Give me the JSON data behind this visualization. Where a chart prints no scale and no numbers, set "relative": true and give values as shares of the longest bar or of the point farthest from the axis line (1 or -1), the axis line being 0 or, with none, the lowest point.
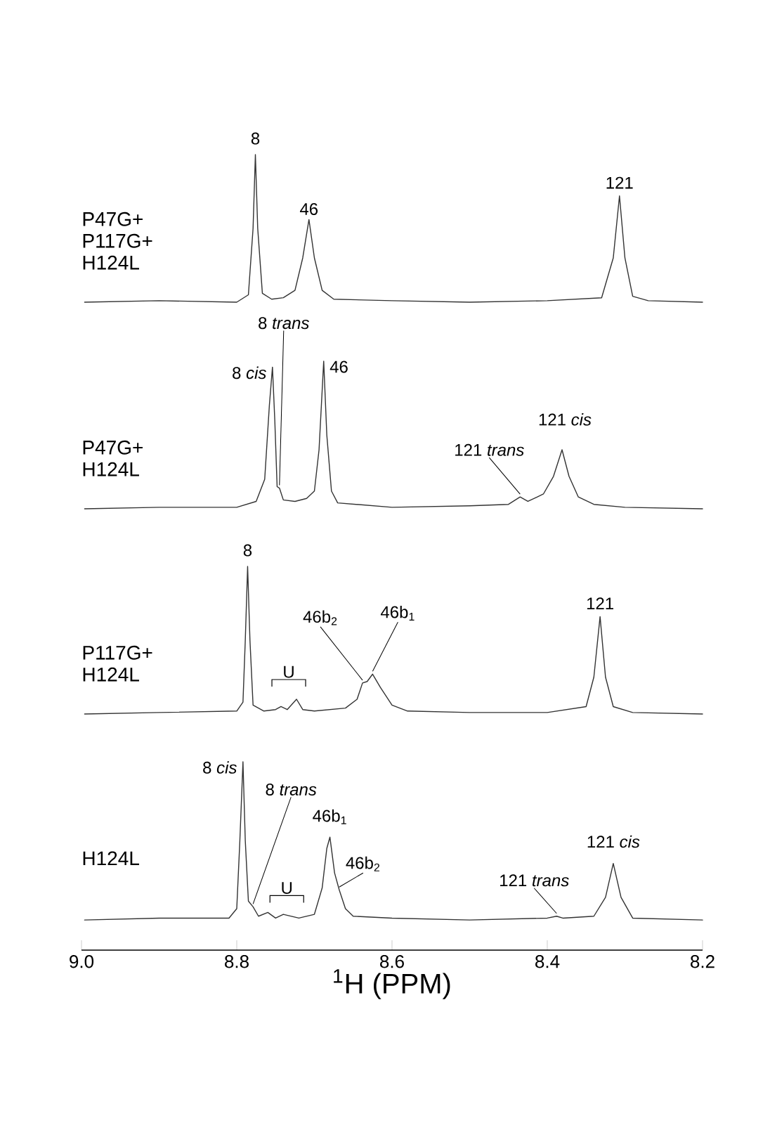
{
  "chart_data": [
    {
      "type": "line",
      "relative": true,
      "xlim": [
        9.0,
        8.2
      ],
      "tick_labels": false,
      "series": [
        {
          "name": "P47G+ P117G+ H124L",
          "color": "#333333",
          "x": [
            8.996,
            8.9,
            8.8,
            8.785,
            8.779,
            8.776,
            8.773,
            8.767,
            8.755,
            8.74,
            8.725,
            8.715,
            8.707,
            8.7,
            8.69,
            8.675,
            8.6,
            8.5,
            8.4,
            8.33,
            8.315,
            8.307,
            8.3,
            8.29,
            8.27,
            8.2
          ],
          "values": [
            0,
            0.01,
            0.0,
            0.05,
            0.5,
            1.0,
            0.5,
            0.06,
            0.02,
            0.03,
            0.08,
            0.3,
            0.56,
            0.3,
            0.08,
            0.02,
            0.01,
            0.0,
            0.01,
            0.03,
            0.3,
            0.72,
            0.3,
            0.04,
            0.01,
            0
          ]
        }
      ],
      "annotations": [
        {
          "text": "8",
          "x": 8.776,
          "y": 1.0
        },
        {
          "text": "46",
          "x": 8.707,
          "y": 0.56
        },
        {
          "text": "121",
          "x": 8.307,
          "y": 0.72
        }
      ]
    },
    {
      "type": "line",
      "relative": true,
      "xlim": [
        9.0,
        8.2
      ],
      "tick_labels": false,
      "series": [
        {
          "name": "P47G+ H124L",
          "color": "#333333",
          "x": [
            8.996,
            8.9,
            8.8,
            8.775,
            8.764,
            8.758,
            8.754,
            8.751,
            8.748,
            8.745,
            8.74,
            8.725,
            8.71,
            8.7,
            8.694,
            8.688,
            8.684,
            8.678,
            8.67,
            8.6,
            8.5,
            8.45,
            8.435,
            8.425,
            8.405,
            8.392,
            8.381,
            8.372,
            8.36,
            8.34,
            8.3,
            8.2
          ],
          "values": [
            0,
            0.01,
            0.01,
            0.05,
            0.2,
            0.7,
            0.96,
            0.6,
            0.15,
            0.14,
            0.06,
            0.05,
            0.07,
            0.12,
            0.4,
            1.0,
            0.5,
            0.12,
            0.04,
            0.01,
            0.02,
            0.03,
            0.08,
            0.05,
            0.1,
            0.22,
            0.4,
            0.22,
            0.08,
            0.03,
            0.01,
            0
          ]
        }
      ],
      "annotations": [
        {
          "text": "8 *cis*",
          "x": 8.754,
          "y": 0.96
        },
        {
          "text": "8 *trans*",
          "x": 8.745,
          "y": 0.14
        },
        {
          "text": "46",
          "x": 8.688,
          "y": 1.0
        },
        {
          "text": "121 *trans*",
          "x": 8.435,
          "y": 0.08
        },
        {
          "text": "121 *cis*",
          "x": 8.381,
          "y": 0.4
        }
      ]
    },
    {
      "type": "line",
      "relative": true,
      "xlim": [
        9.0,
        8.2
      ],
      "tick_labels": false,
      "series": [
        {
          "name": "P117G+ H124L",
          "color": "#333333",
          "x": [
            8.996,
            8.9,
            8.8,
            8.792,
            8.789,
            8.786,
            8.783,
            8.779,
            8.765,
            8.75,
            8.743,
            8.735,
            8.723,
            8.715,
            8.7,
            8.66,
            8.645,
            8.638,
            8.632,
            8.625,
            8.615,
            8.6,
            8.58,
            8.5,
            8.4,
            8.35,
            8.34,
            8.332,
            8.325,
            8.315,
            8.29,
            8.2
          ],
          "values": [
            0,
            0.01,
            0.02,
            0.08,
            0.5,
            1.0,
            0.5,
            0.06,
            0.02,
            0.03,
            0.05,
            0.03,
            0.1,
            0.03,
            0.02,
            0.04,
            0.1,
            0.21,
            0.22,
            0.27,
            0.18,
            0.06,
            0.02,
            0.01,
            0.01,
            0.05,
            0.25,
            0.66,
            0.25,
            0.05,
            0.01,
            0
          ]
        }
      ],
      "annotations": [
        {
          "text": "8",
          "x": 8.786,
          "y": 1.0
        },
        {
          "text": "U",
          "x": 8.733,
          "y": 0.1
        },
        {
          "text": "46b$_{2}$",
          "x": 8.638,
          "y": 0.21
        },
        {
          "text": "46b$_{1}$",
          "x": 8.625,
          "y": 0.27
        },
        {
          "text": "121",
          "x": 8.332,
          "y": 0.66
        }
      ]
    },
    {
      "type": "line",
      "relative": true,
      "xlim": [
        9.0,
        8.2
      ],
      "xticks": [
        {
          "value": 9.0,
          "label": "9.0"
        },
        8.8,
        8.6,
        8.4,
        8.2
      ],
      "tick_labels": "x",
      "xlabel": "$^{1}$H (PPM)",
      "series": [
        {
          "name": "H124L",
          "color": "#333333",
          "x": [
            8.996,
            8.9,
            8.81,
            8.8,
            8.796,
            8.792,
            8.789,
            8.785,
            8.779,
            8.772,
            8.76,
            8.75,
            8.74,
            8.72,
            8.7,
            8.69,
            8.684,
            8.68,
            8.674,
            8.668,
            8.66,
            8.65,
            8.6,
            8.5,
            8.4,
            8.388,
            8.38,
            8.34,
            8.325,
            8.315,
            8.305,
            8.29,
            8.2
          ],
          "values": [
            0.16,
            0.17,
            0.17,
            0.22,
            0.58,
            1.0,
            0.58,
            0.26,
            0.23,
            0.18,
            0.2,
            0.17,
            0.19,
            0.17,
            0.19,
            0.33,
            0.54,
            0.6,
            0.41,
            0.32,
            0.22,
            0.18,
            0.17,
            0.16,
            0.17,
            0.18,
            0.17,
            0.18,
            0.28,
            0.46,
            0.28,
            0.17,
            0.16
          ]
        }
      ],
      "annotations": [
        {
          "text": "8 *cis*",
          "x": 8.792,
          "y": 1.0
        },
        {
          "text": "8 *trans*",
          "x": 8.779,
          "y": 0.23
        },
        {
          "text": "U",
          "x": 8.75,
          "y": 0.2
        },
        {
          "text": "46b$_{1}$",
          "x": 8.68,
          "y": 0.6
        },
        {
          "text": "46b$_{2}$",
          "x": 8.668,
          "y": 0.32
        },
        {
          "text": "121 *trans*",
          "x": 8.388,
          "y": 0.18
        },
        {
          "text": "121 *cis*",
          "x": 8.315,
          "y": 0.46
        }
      ]
    }
  ]
}
